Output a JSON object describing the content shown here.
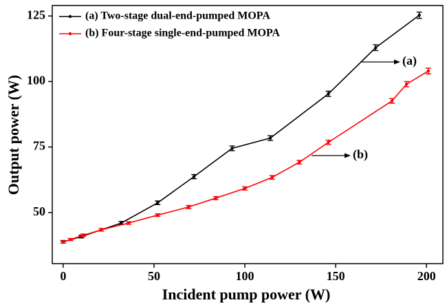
{
  "chart_data": {
    "type": "line",
    "x_label": "Incident pump power (W)",
    "y_label": "Output power (W)",
    "xlim": [
      -6,
      209
    ],
    "xticks": [
      0,
      50,
      100,
      150,
      200
    ],
    "ylim": [
      30.5,
      129
    ],
    "yticks": [
      50,
      75,
      100,
      125
    ],
    "legend": "upper left",
    "series": [
      {
        "name": "(a) Two-stage dual-end-pumped MOPA",
        "color": "#000000",
        "x": [
          0,
          10,
          32,
          52,
          72,
          93,
          114,
          146,
          172,
          196
        ],
        "values": [
          38.8,
          40.8,
          46,
          53.7,
          63.7,
          74.5,
          78.4,
          95.3,
          112.9,
          125.3
        ],
        "errors": [
          0.5,
          0.5,
          0.6,
          0.7,
          0.8,
          0.9,
          0.9,
          1.0,
          1.1,
          1.2
        ]
      },
      {
        "name": "(b) Four-stage single-end-pumped MOPA",
        "color": "#ff0000",
        "x": [
          0,
          4,
          11,
          21,
          36,
          52,
          69,
          84,
          100,
          115,
          130,
          146,
          181,
          189,
          201
        ],
        "values": [
          38.7,
          39.7,
          41.3,
          43.4,
          46,
          49,
          52.1,
          55.5,
          59.2,
          63.4,
          69.2,
          76.8,
          92.6,
          99,
          104
        ],
        "errors": [
          0.4,
          0.4,
          0.5,
          0.5,
          0.5,
          0.5,
          0.6,
          0.6,
          0.6,
          0.7,
          0.7,
          0.8,
          0.9,
          1.0,
          1.1
        ]
      }
    ],
    "annotations": [
      {
        "text": "(a)"
      },
      {
        "text": "(b)"
      }
    ]
  }
}
